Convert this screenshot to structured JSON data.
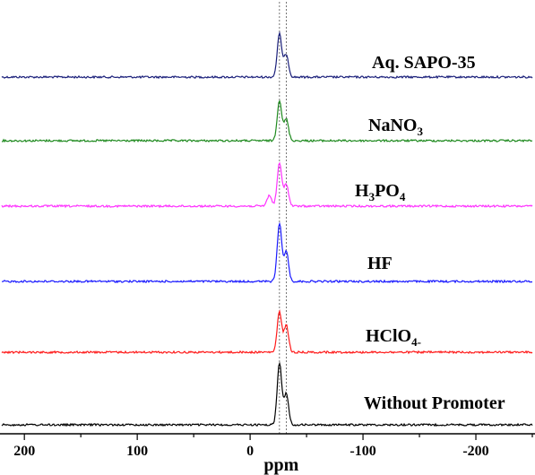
{
  "chart_data": {
    "type": "line",
    "title": "",
    "xlabel": "ppm",
    "ylabel": "",
    "xlim": [
      220,
      -250
    ],
    "x_ticks": [
      {
        "value": 200,
        "label": "200"
      },
      {
        "value": 100,
        "label": "100"
      },
      {
        "value": 0,
        "label": "0"
      },
      {
        "value": -100,
        "label": "-100"
      },
      {
        "value": -200,
        "label": "-200"
      }
    ],
    "reference_lines_ppm": [
      -26,
      -32
    ],
    "series": [
      {
        "name": "Aq. SAPO-35",
        "color": "#1a1f7a",
        "peaks": [
          {
            "ppm": -26,
            "height": 0.64
          },
          {
            "ppm": -32,
            "height": 0.34
          }
        ],
        "label_parts": [
          {
            "text": "Aq. SAPO-35",
            "sub": false
          }
        ]
      },
      {
        "name": "NaNO3",
        "color": "#1f8a1f",
        "peaks": [
          {
            "ppm": -26,
            "height": 0.6
          },
          {
            "ppm": -32,
            "height": 0.32
          }
        ],
        "label_parts": [
          {
            "text": "NaNO",
            "sub": false
          },
          {
            "text": "3",
            "sub": true
          }
        ]
      },
      {
        "name": "H3PO4",
        "color": "#ff33ff",
        "peaks": [
          {
            "ppm": -26,
            "height": 0.64
          },
          {
            "ppm": -32,
            "height": 0.33
          },
          {
            "ppm": -17,
            "height": 0.16
          }
        ],
        "label_parts": [
          {
            "text": "H",
            "sub": false
          },
          {
            "text": "3",
            "sub": true
          },
          {
            "text": "PO",
            "sub": false
          },
          {
            "text": "4",
            "sub": true
          }
        ]
      },
      {
        "name": "HF",
        "color": "#1a1aff",
        "peaks": [
          {
            "ppm": -26,
            "height": 0.86
          },
          {
            "ppm": -32,
            "height": 0.45
          }
        ],
        "label_parts": [
          {
            "text": "HF",
            "sub": false
          }
        ]
      },
      {
        "name": "HClO4-",
        "color": "#ff1a1a",
        "peaks": [
          {
            "ppm": -26,
            "height": 0.6
          },
          {
            "ppm": -32,
            "height": 0.4
          }
        ],
        "label_parts": [
          {
            "text": "HClO",
            "sub": false
          },
          {
            "text": "4-",
            "sub": true
          }
        ]
      },
      {
        "name": "Without Promoter",
        "color": "#000000",
        "peaks": [
          {
            "ppm": -26,
            "height": 0.92
          },
          {
            "ppm": -32,
            "height": 0.46
          }
        ],
        "label_parts": [
          {
            "text": "Without Promoter",
            "sub": false
          }
        ]
      }
    ],
    "grid": false,
    "legend": "none"
  }
}
